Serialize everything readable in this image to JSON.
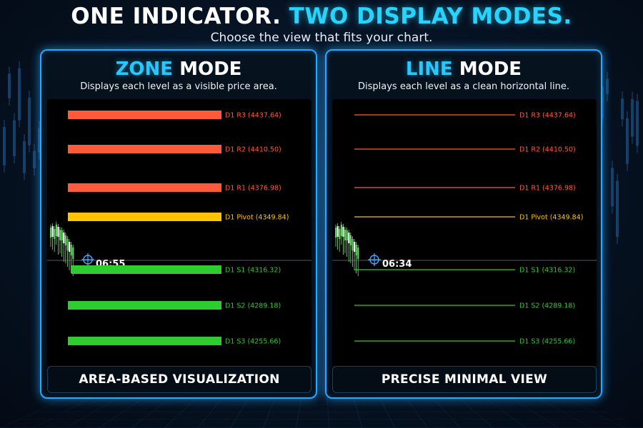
{
  "header": {
    "headline_part1": "ONE INDICATOR.",
    "headline_part2": "TWO DISPLAY MODES.",
    "subtitle": "Choose the view that fits your chart."
  },
  "colors": {
    "accent": "#27d4ff",
    "resistance": "#ff5a3c",
    "pivot": "#ffc400",
    "support": "#2ecc2e"
  },
  "panels": [
    {
      "mode": "zone",
      "title_highlight": "ZONE",
      "title_rest": "MODE",
      "description": "Displays each level as a visible price area.",
      "footer": "AREA-BASED VISUALIZATION",
      "time_label": "06:55",
      "levels": [
        {
          "label": "D1 R3 (4437.64)",
          "price": 4437.64,
          "kind": "resistance"
        },
        {
          "label": "D1 R2 (4410.50)",
          "price": 4410.5,
          "kind": "resistance"
        },
        {
          "label": "D1 R1 (4376.98)",
          "price": 4376.98,
          "kind": "resistance"
        },
        {
          "label": "D1 Pivot (4349.84)",
          "price": 4349.84,
          "kind": "pivot"
        },
        {
          "label": "D1 S1 (4316.32)",
          "price": 4316.32,
          "kind": "support"
        },
        {
          "label": "D1 S2 (4289.18)",
          "price": 4289.18,
          "kind": "support"
        },
        {
          "label": "D1 S3 (4255.66)",
          "price": 4255.66,
          "kind": "support"
        }
      ]
    },
    {
      "mode": "line",
      "title_highlight": "LINE",
      "title_rest": "MODE",
      "description": "Displays each level as a clean horizontal line.",
      "footer": "PRECISE MINIMAL VIEW",
      "time_label": "06:34",
      "levels": [
        {
          "label": "D1 R3 (4437.64)",
          "price": 4437.64,
          "kind": "resistance"
        },
        {
          "label": "D1 R2 (4410.50)",
          "price": 4410.5,
          "kind": "resistance"
        },
        {
          "label": "D1 R1 (4376.98)",
          "price": 4376.98,
          "kind": "resistance"
        },
        {
          "label": "D1 Pivot (4349.84)",
          "price": 4349.84,
          "kind": "pivot"
        },
        {
          "label": "D1 S1 (4316.32)",
          "price": 4316.32,
          "kind": "support"
        },
        {
          "label": "D1 S2 (4289.18)",
          "price": 4289.18,
          "kind": "support"
        },
        {
          "label": "D1 S3 (4255.66)",
          "price": 4255.66,
          "kind": "support"
        }
      ]
    }
  ]
}
